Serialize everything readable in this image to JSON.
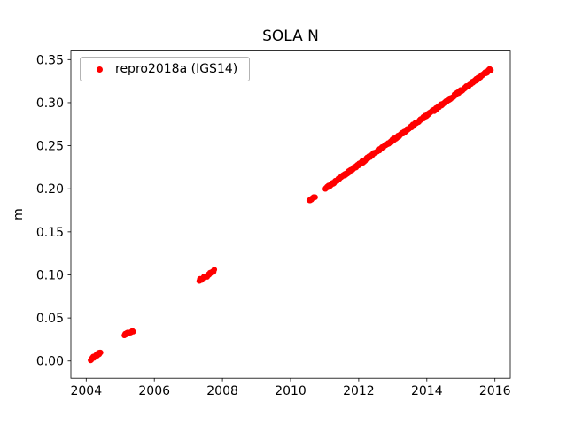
{
  "chart_data": {
    "type": "scatter",
    "title": "SOLA N",
    "xlabel": "",
    "ylabel": "m",
    "xlim": [
      2003.55,
      2016.45
    ],
    "ylim": [
      -0.02,
      0.36
    ],
    "xticks": [
      2004,
      2006,
      2008,
      2010,
      2012,
      2014,
      2016
    ],
    "yticks": [
      0.0,
      0.05,
      0.1,
      0.15,
      0.2,
      0.25,
      0.3,
      0.35
    ],
    "grid": false,
    "background": "#ffffff",
    "legend_position": "upper left",
    "series": [
      {
        "name": "repro2018a (IGS14)",
        "color": "#ff0000",
        "marker": "circle",
        "marker_radius": 3.2,
        "noise": 0.0013,
        "segments": [
          {
            "x_start": 2004.13,
            "x_end": 2004.42,
            "y_start": 0.002,
            "y_end": 0.01,
            "n": 16
          },
          {
            "x_start": 2005.12,
            "x_end": 2005.38,
            "y_start": 0.03,
            "y_end": 0.035,
            "n": 12
          },
          {
            "x_start": 2007.32,
            "x_end": 2007.46,
            "y_start": 0.094,
            "y_end": 0.097,
            "n": 8
          },
          {
            "x_start": 2007.55,
            "x_end": 2007.76,
            "y_start": 0.099,
            "y_end": 0.105,
            "n": 11
          },
          {
            "x_start": 2010.55,
            "x_end": 2010.72,
            "y_start": 0.186,
            "y_end": 0.191,
            "n": 9
          },
          {
            "x_start": 2011.02,
            "x_end": 2015.88,
            "y_start": 0.2,
            "y_end": 0.339,
            "n": 270
          }
        ]
      }
    ]
  }
}
